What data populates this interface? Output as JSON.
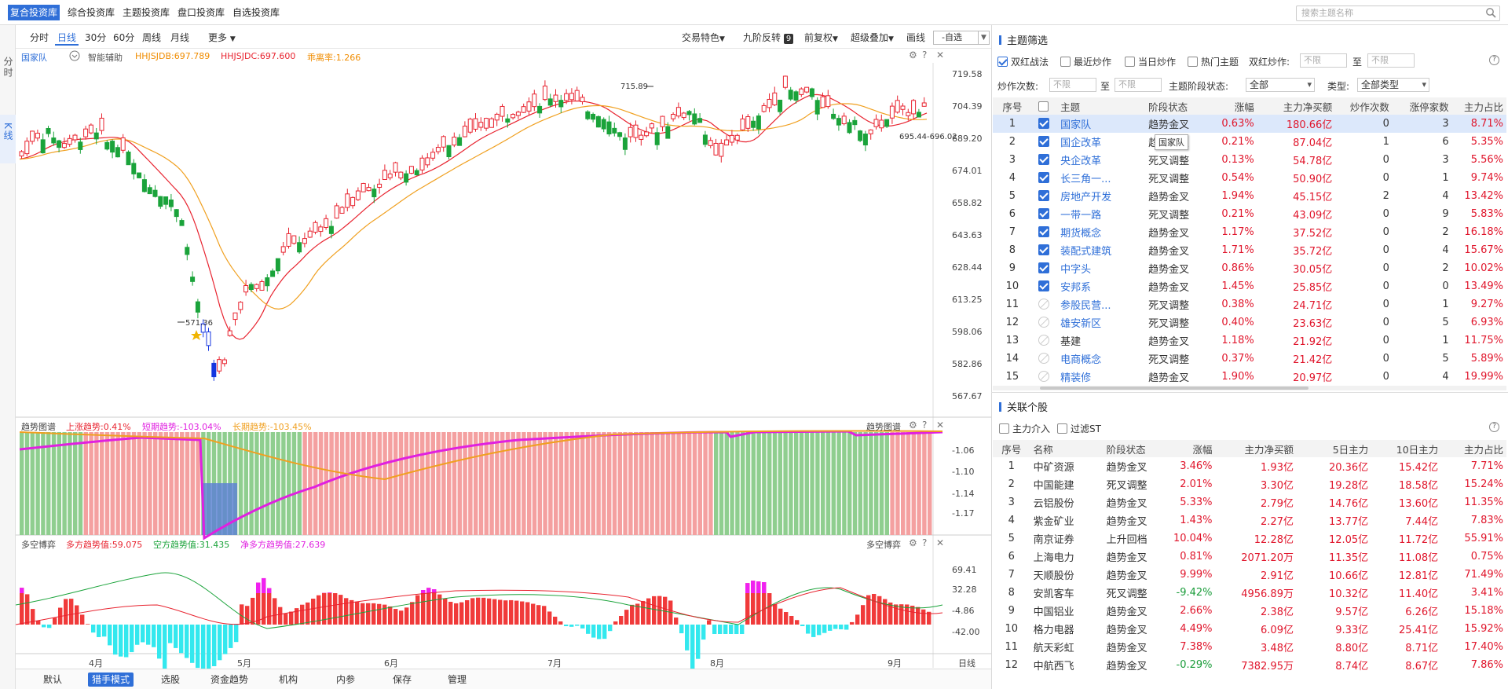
{
  "top_tabs": [
    "复合投资库",
    "综合投资库",
    "主题投资库",
    "盘口投资库",
    "自选投资库"
  ],
  "search_placeholder": "搜索主题名称",
  "rail": {
    "fenshi": "分时",
    "kline": "K线"
  },
  "periods": [
    "分时",
    "日线",
    "30分",
    "60分",
    "周线",
    "月线",
    "更多"
  ],
  "tools": [
    "交易特色",
    "九阶反转",
    "前复权",
    "超级叠加",
    "画线"
  ],
  "nine_badge": "9",
  "zixuan": "-自选",
  "main_chart": {
    "name": "国家队",
    "assist": "智能辅助",
    "hhjsjdb": "HHJSJDB:697.789",
    "hhjsjdc": "HHJSJDC:697.600",
    "deviation": "乖离率:1.266",
    "y_ticks": [
      "719.58",
      "704.39",
      "689.20",
      "674.01",
      "658.82",
      "643.63",
      "628.44",
      "613.25",
      "598.06",
      "582.86",
      "567.67"
    ],
    "high_label": "715.89",
    "low_label": "571.36",
    "range_label": "695.44-696.02",
    "colors": {
      "up": "#e8232f",
      "down": "#1aa33a",
      "blue": "#1536e0",
      "ma1": "#e8232f",
      "ma2": "#f0a020"
    }
  },
  "trend_panel": {
    "title": "趋势图谱",
    "up_trend": "上涨趋势:0.41%",
    "short_trend": "短期趋势:-103.04%",
    "long_trend": "长期趋势:-103.45%",
    "title_right": "趋势图谱",
    "y_ticks": [
      "-1.06",
      "-1.10",
      "-1.14",
      "-1.17"
    ]
  },
  "duokong_panel": {
    "title": "多空博弈",
    "duo": "多方趋势值:59.075",
    "kong": "空方趋势值:31.435",
    "net": "净多方趋势值:27.639",
    "title_right": "多空博弈",
    "y_ticks": [
      "69.41",
      "32.28",
      "-4.86",
      "-42.00"
    ]
  },
  "x_axis": [
    "4月",
    "5月",
    "6月",
    "7月",
    "8月",
    "9月"
  ],
  "x_unit": "日线",
  "bottom_tabs": [
    "默认",
    "猎手模式",
    "选股",
    "资金趋势",
    "机构",
    "内参",
    "保存",
    "管理"
  ],
  "theme_filter": {
    "title": "主题筛选",
    "opts": [
      "双红战法",
      "最近炒作",
      "当日炒作",
      "热门主题"
    ],
    "shuanghong_label": "双红炒作:",
    "unlimited": "不限",
    "to": "至",
    "count_label": "炒作次数:",
    "stage_label": "主题阶段状态:",
    "stage_value": "全部",
    "type_label": "类型:",
    "type_value": "全部类型",
    "headers": [
      "序号",
      "",
      "主题",
      "阶段状态",
      "涨幅",
      "主力净买额",
      "炒作次数",
      "涨停家数",
      "主力占比"
    ],
    "rows": [
      [
        "1",
        "国家队",
        "趋势金叉",
        "0.63%",
        "180.66亿",
        "0",
        "3",
        "8.71%"
      ],
      [
        "2",
        "国企改革",
        "趋势金叉",
        "0.21%",
        "87.04亿",
        "1",
        "6",
        "5.35%"
      ],
      [
        "3",
        "央企改革",
        "死叉调整",
        "0.13%",
        "54.78亿",
        "0",
        "3",
        "5.56%"
      ],
      [
        "4",
        "长三角一...",
        "死叉调整",
        "0.54%",
        "50.90亿",
        "0",
        "1",
        "9.74%"
      ],
      [
        "5",
        "房地产开发",
        "趋势金叉",
        "1.94%",
        "45.15亿",
        "2",
        "4",
        "13.42%"
      ],
      [
        "6",
        "一带一路",
        "死叉调整",
        "0.21%",
        "43.09亿",
        "0",
        "9",
        "5.83%"
      ],
      [
        "7",
        "期货概念",
        "趋势金叉",
        "1.17%",
        "37.52亿",
        "0",
        "2",
        "16.18%"
      ],
      [
        "8",
        "装配式建筑",
        "趋势金叉",
        "1.71%",
        "35.72亿",
        "0",
        "4",
        "15.67%"
      ],
      [
        "9",
        "中字头",
        "趋势金叉",
        "0.86%",
        "30.05亿",
        "0",
        "2",
        "10.02%"
      ],
      [
        "10",
        "安邦系",
        "趋势金叉",
        "1.45%",
        "25.85亿",
        "0",
        "0",
        "13.49%"
      ],
      [
        "11",
        "参股民营...",
        "死叉调整",
        "0.38%",
        "24.71亿",
        "0",
        "1",
        "9.27%"
      ],
      [
        "12",
        "雄安新区",
        "死叉调整",
        "0.40%",
        "23.63亿",
        "0",
        "5",
        "6.93%"
      ],
      [
        "13",
        "基建",
        "趋势金叉",
        "1.18%",
        "21.92亿",
        "0",
        "1",
        "11.75%"
      ],
      [
        "14",
        "电商概念",
        "死叉调整",
        "0.37%",
        "21.42亿",
        "0",
        "5",
        "5.89%"
      ],
      [
        "15",
        "精装修",
        "趋势金叉",
        "1.90%",
        "20.97亿",
        "0",
        "4",
        "19.99%"
      ]
    ],
    "tooltip": "国家队"
  },
  "related": {
    "title": "关联个股",
    "opts": [
      "主力介入",
      "过滤ST"
    ],
    "headers": [
      "序号",
      "名称",
      "阶段状态",
      "涨幅",
      "主力净买额",
      "5日主力",
      "10日主力",
      "主力占比"
    ],
    "rows": [
      [
        "1",
        "中矿资源",
        "趋势金叉",
        "3.46%",
        "1.93亿",
        "20.36亿",
        "15.42亿",
        "7.71%"
      ],
      [
        "2",
        "中国能建",
        "死叉调整",
        "2.01%",
        "3.30亿",
        "19.28亿",
        "18.58亿",
        "15.24%"
      ],
      [
        "3",
        "云铝股份",
        "趋势金叉",
        "5.33%",
        "2.79亿",
        "14.76亿",
        "13.60亿",
        "11.35%"
      ],
      [
        "4",
        "紫金矿业",
        "趋势金叉",
        "1.43%",
        "2.27亿",
        "13.77亿",
        "7.44亿",
        "7.83%"
      ],
      [
        "5",
        "南京证券",
        "上升回档",
        "10.04%",
        "12.28亿",
        "12.05亿",
        "11.72亿",
        "55.91%"
      ],
      [
        "6",
        "上海电力",
        "趋势金叉",
        "0.81%",
        "2071.20万",
        "11.35亿",
        "11.08亿",
        "0.75%"
      ],
      [
        "7",
        "天顺股份",
        "趋势金叉",
        "9.99%",
        "2.91亿",
        "10.66亿",
        "12.81亿",
        "71.49%"
      ],
      [
        "8",
        "安凯客车",
        "死叉调整",
        "-9.42%",
        "4956.89万",
        "10.32亿",
        "11.40亿",
        "3.41%"
      ],
      [
        "9",
        "中国铝业",
        "趋势金叉",
        "2.66%",
        "2.38亿",
        "9.57亿",
        "6.26亿",
        "15.18%"
      ],
      [
        "10",
        "格力电器",
        "趋势金叉",
        "4.49%",
        "6.09亿",
        "9.33亿",
        "25.41亿",
        "15.92%"
      ],
      [
        "11",
        "航天彩虹",
        "趋势金叉",
        "7.38%",
        "3.48亿",
        "8.80亿",
        "8.71亿",
        "17.40%"
      ],
      [
        "12",
        "中航西飞",
        "趋势金叉",
        "-0.29%",
        "7382.95万",
        "8.74亿",
        "8.67亿",
        "7.86%"
      ]
    ]
  }
}
